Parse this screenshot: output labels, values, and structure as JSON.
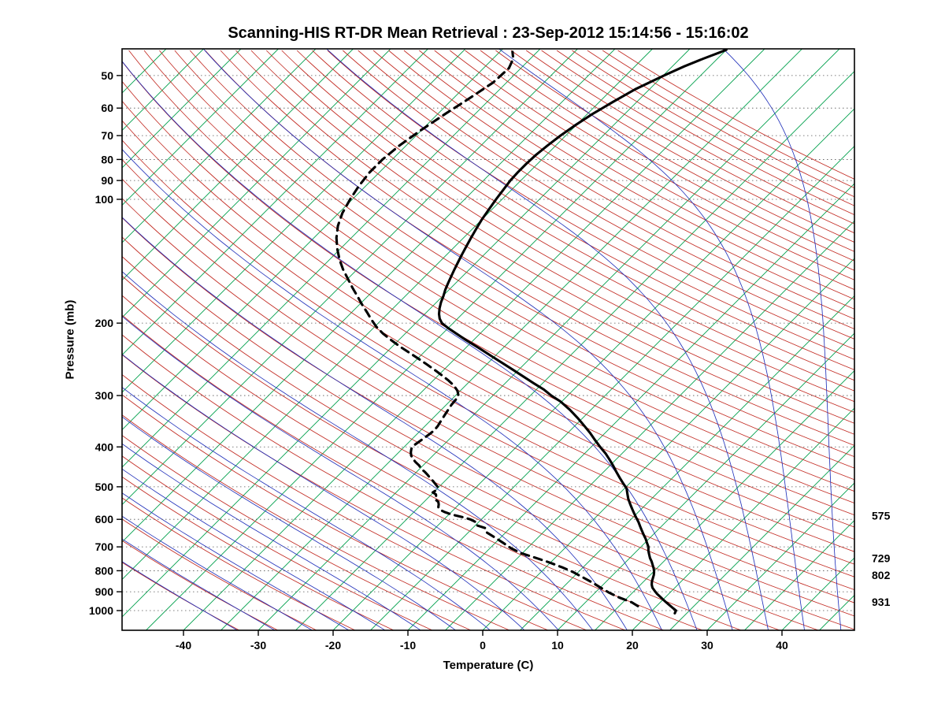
{
  "title": "Scanning-HIS RT-DR Mean Retrieval : 23-Sep-2012 15:14:56 - 15:16:02",
  "chart_data": {
    "type": "line",
    "variant": "skew-t-log-p",
    "xlabel": "Temperature (C)",
    "ylabel": "Pressure (mb)",
    "x_ticks": [
      -40,
      -30,
      -20,
      -10,
      0,
      10,
      20,
      30,
      40
    ],
    "y_ticks": [
      50,
      60,
      70,
      80,
      90,
      100,
      200,
      300,
      400,
      500,
      600,
      700,
      800,
      900,
      1000
    ],
    "x_range_surface_c": [
      -48.2,
      49.7
    ],
    "pressure_range_mb": [
      43,
      1117
    ],
    "grid": "dotted-horizontal-isobars",
    "legend_position": "none",
    "background": {
      "isotherm_step_c": 5,
      "isotherm_min_c": -120,
      "isotherm_max_c": 45,
      "dry_adiabat_step_c": 5,
      "dry_adiabat_min_c": -40,
      "dry_adiabat_max_c": 250,
      "moist_adiabat_step_c": 5,
      "moist_adiabat_min_c": -40,
      "moist_adiabat_max_c": 45
    },
    "colors": {
      "isotherm": "#00A04B",
      "dry_adiabat": "#C22A22",
      "moist_adiabat": "#2433BB",
      "gridline": "#555555",
      "temperature": "#000000",
      "dewpoint": "#000000",
      "frame": "#000000"
    },
    "series": [
      {
        "name": "temperature",
        "style": "solid",
        "points_p_t": [
          [
            1015,
            23.4
          ],
          [
            1000,
            23.2
          ],
          [
            985,
            22.4
          ],
          [
            970,
            21.6
          ],
          [
            955,
            20.8
          ],
          [
            940,
            20.0
          ],
          [
            925,
            19.2
          ],
          [
            910,
            18.4
          ],
          [
            895,
            17.7
          ],
          [
            880,
            17.0
          ],
          [
            865,
            16.5
          ],
          [
            850,
            16.1
          ],
          [
            835,
            15.8
          ],
          [
            820,
            15.5
          ],
          [
            805,
            15.1
          ],
          [
            790,
            14.6
          ],
          [
            775,
            14.0
          ],
          [
            760,
            13.4
          ],
          [
            745,
            12.7
          ],
          [
            730,
            12.1
          ],
          [
            715,
            11.5
          ],
          [
            700,
            11.0
          ],
          [
            685,
            10.3
          ],
          [
            670,
            9.6
          ],
          [
            655,
            8.8
          ],
          [
            640,
            8.0
          ],
          [
            625,
            7.2
          ],
          [
            610,
            6.4
          ],
          [
            595,
            5.5
          ],
          [
            580,
            4.6
          ],
          [
            565,
            3.7
          ],
          [
            550,
            2.8
          ],
          [
            535,
            1.9
          ],
          [
            520,
            1.1
          ],
          [
            505,
            0.3
          ],
          [
            490,
            -0.9
          ],
          [
            475,
            -2.1
          ],
          [
            460,
            -3.3
          ],
          [
            445,
            -4.5
          ],
          [
            430,
            -5.8
          ],
          [
            415,
            -7.2
          ],
          [
            400,
            -8.8
          ],
          [
            385,
            -10.4
          ],
          [
            370,
            -12.0
          ],
          [
            355,
            -13.8
          ],
          [
            340,
            -15.7
          ],
          [
            325,
            -17.8
          ],
          [
            310,
            -20.2
          ],
          [
            300,
            -22.2
          ],
          [
            290,
            -24.0
          ],
          [
            280,
            -26.2
          ],
          [
            270,
            -28.4
          ],
          [
            260,
            -30.7
          ],
          [
            250,
            -33.1
          ],
          [
            240,
            -35.6
          ],
          [
            230,
            -38.2
          ],
          [
            220,
            -41.0
          ],
          [
            212,
            -43.2
          ],
          [
            206,
            -44.9
          ],
          [
            200,
            -46.5
          ],
          [
            195,
            -47.4
          ],
          [
            190,
            -48.1
          ],
          [
            184,
            -48.8
          ],
          [
            178,
            -49.4
          ],
          [
            172,
            -49.9
          ],
          [
            166,
            -50.5
          ],
          [
            160,
            -51.0
          ],
          [
            154,
            -51.5
          ],
          [
            148,
            -52.0
          ],
          [
            142,
            -52.5
          ],
          [
            136,
            -53.0
          ],
          [
            130,
            -53.5
          ],
          [
            124,
            -54.0
          ],
          [
            118,
            -54.5
          ],
          [
            112,
            -55.0
          ],
          [
            106,
            -55.4
          ],
          [
            100,
            -55.8
          ],
          [
            95,
            -56.1
          ],
          [
            90,
            -56.4
          ],
          [
            86,
            -56.5
          ],
          [
            82,
            -56.5
          ],
          [
            78,
            -56.4
          ],
          [
            74,
            -56.1
          ],
          [
            70,
            -55.7
          ],
          [
            66,
            -55.1
          ],
          [
            62,
            -54.3
          ],
          [
            58,
            -53.2
          ],
          [
            54,
            -51.9
          ],
          [
            50,
            -49.9
          ],
          [
            47.5,
            -48.4
          ],
          [
            45.5,
            -46.9
          ],
          [
            44,
            -45.6
          ],
          [
            43.3,
            -45.0
          ]
        ]
      },
      {
        "name": "dewpoint",
        "style": "dashed",
        "points_p_t": [
          [
            975,
            17.5
          ],
          [
            955,
            16.2
          ],
          [
            930,
            13.9
          ],
          [
            905,
            11.9
          ],
          [
            880,
            10.1
          ],
          [
            855,
            8.3
          ],
          [
            830,
            6.3
          ],
          [
            805,
            4.2
          ],
          [
            785,
            2.2
          ],
          [
            765,
            0.0
          ],
          [
            745,
            -2.5
          ],
          [
            725,
            -5.2
          ],
          [
            705,
            -7.2
          ],
          [
            685,
            -8.9
          ],
          [
            665,
            -10.7
          ],
          [
            645,
            -12.6
          ],
          [
            630,
            -13.3
          ],
          [
            620,
            -14.9
          ],
          [
            610,
            -15.3
          ],
          [
            600,
            -16.5
          ],
          [
            592,
            -17.9
          ],
          [
            584,
            -19.6
          ],
          [
            576,
            -20.9
          ],
          [
            568,
            -21.9
          ],
          [
            560,
            -22.4
          ],
          [
            552,
            -22.7
          ],
          [
            544,
            -23.1
          ],
          [
            536,
            -23.9
          ],
          [
            528,
            -24.1
          ],
          [
            522,
            -24.4
          ],
          [
            516,
            -25.1
          ],
          [
            508,
            -24.9
          ],
          [
            500,
            -25.2
          ],
          [
            492,
            -25.9
          ],
          [
            484,
            -26.6
          ],
          [
            476,
            -27.4
          ],
          [
            468,
            -28.1
          ],
          [
            460,
            -28.9
          ],
          [
            452,
            -29.8
          ],
          [
            444,
            -30.5
          ],
          [
            436,
            -31.4
          ],
          [
            428,
            -32.2
          ],
          [
            420,
            -32.9
          ],
          [
            412,
            -33.4
          ],
          [
            404,
            -33.8
          ],
          [
            396,
            -33.9
          ],
          [
            388,
            -33.7
          ],
          [
            380,
            -33.5
          ],
          [
            372,
            -33.3
          ],
          [
            364,
            -33.2
          ],
          [
            356,
            -33.3
          ],
          [
            348,
            -33.5
          ],
          [
            340,
            -33.7
          ],
          [
            332,
            -33.9
          ],
          [
            324,
            -34.1
          ],
          [
            316,
            -34.3
          ],
          [
            308,
            -34.4
          ],
          [
            300,
            -34.6
          ],
          [
            292,
            -35.4
          ],
          [
            284,
            -36.5
          ],
          [
            276,
            -37.9
          ],
          [
            268,
            -39.5
          ],
          [
            260,
            -41.2
          ],
          [
            252,
            -43.0
          ],
          [
            244,
            -44.9
          ],
          [
            236,
            -46.9
          ],
          [
            228,
            -49.0
          ],
          [
            220,
            -51.0
          ],
          [
            212,
            -53.0
          ],
          [
            204,
            -54.8
          ],
          [
            196,
            -56.4
          ],
          [
            188,
            -58.0
          ],
          [
            180,
            -59.7
          ],
          [
            172,
            -61.4
          ],
          [
            164,
            -63.2
          ],
          [
            156,
            -65.0
          ],
          [
            148,
            -66.9
          ],
          [
            140,
            -68.7
          ],
          [
            132,
            -70.4
          ],
          [
            124,
            -72.0
          ],
          [
            116,
            -73.4
          ],
          [
            108,
            -74.5
          ],
          [
            100,
            -75.3
          ],
          [
            93,
            -75.9
          ],
          [
            86,
            -76.3
          ],
          [
            80,
            -76.3
          ],
          [
            74,
            -75.9
          ],
          [
            68,
            -75.1
          ],
          [
            62,
            -74.0
          ],
          [
            57,
            -72.9
          ],
          [
            52,
            -71.8
          ],
          [
            48,
            -71.6
          ],
          [
            45.5,
            -72.3
          ],
          [
            43.8,
            -73.3
          ]
        ]
      }
    ],
    "right_labels": [
      {
        "text": "575",
        "pressure": 575
      },
      {
        "text": "729",
        "pressure": 729
      },
      {
        "text": "802",
        "pressure": 802
      },
      {
        "text": "931",
        "pressure": 931
      }
    ]
  }
}
